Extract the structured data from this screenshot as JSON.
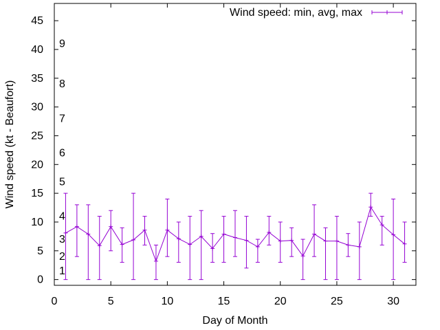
{
  "chart_data": {
    "type": "line",
    "title": "",
    "xlabel": "Day of Month",
    "ylabel": "Wind speed (kt - Beaufort)",
    "xlim": [
      0,
      32
    ],
    "ylim": [
      -1,
      48
    ],
    "xticks": [
      0,
      5,
      10,
      15,
      20,
      25,
      30
    ],
    "yticks": [
      0,
      5,
      10,
      15,
      20,
      25,
      30,
      35,
      40,
      45
    ],
    "grid": false,
    "legend_position": "top-right",
    "series": [
      {
        "name": "Wind speed: min, avg, max",
        "color": "#9400d3",
        "x": [
          1,
          2,
          3,
          4,
          5,
          6,
          7,
          8,
          9,
          10,
          11,
          12,
          13,
          14,
          15,
          16,
          17,
          18,
          19,
          20,
          21,
          22,
          23,
          24,
          25,
          26,
          27,
          28,
          29,
          30,
          31
        ],
        "avg": [
          8.1,
          9.2,
          7.9,
          5.9,
          9.2,
          6.1,
          6.9,
          8.6,
          3.2,
          8.6,
          7.1,
          6.1,
          7.5,
          5.4,
          7.9,
          7.3,
          6.8,
          5.7,
          8.2,
          6.7,
          6.8,
          4.1,
          7.9,
          6.7,
          6.7,
          6.0,
          5.7,
          12.6,
          9.5,
          7.8,
          6.2
        ],
        "min": [
          0,
          4,
          0,
          0,
          5,
          3,
          0,
          6,
          0,
          4,
          3,
          0,
          0,
          3,
          3,
          4,
          2,
          3,
          6,
          3,
          4,
          0,
          4,
          0,
          0,
          4,
          0,
          11,
          6,
          0,
          3
        ],
        "max": [
          15,
          13,
          13,
          11,
          12,
          9,
          15,
          11,
          6,
          14,
          10,
          11,
          12,
          8,
          11,
          12,
          11,
          7,
          11,
          10,
          9,
          7,
          13,
          9,
          11,
          8,
          10,
          15,
          11,
          14,
          10
        ]
      }
    ],
    "annotations": [
      {
        "text": "1",
        "y": 1.5
      },
      {
        "text": "2",
        "y": 4.0
      },
      {
        "text": "3",
        "y": 7.0
      },
      {
        "text": "4",
        "y": 11.0
      },
      {
        "text": "5",
        "y": 17.0
      },
      {
        "text": "6",
        "y": 22.0
      },
      {
        "text": "7",
        "y": 28.0
      },
      {
        "text": "8",
        "y": 34.0
      },
      {
        "text": "9",
        "y": 41.0
      }
    ]
  }
}
